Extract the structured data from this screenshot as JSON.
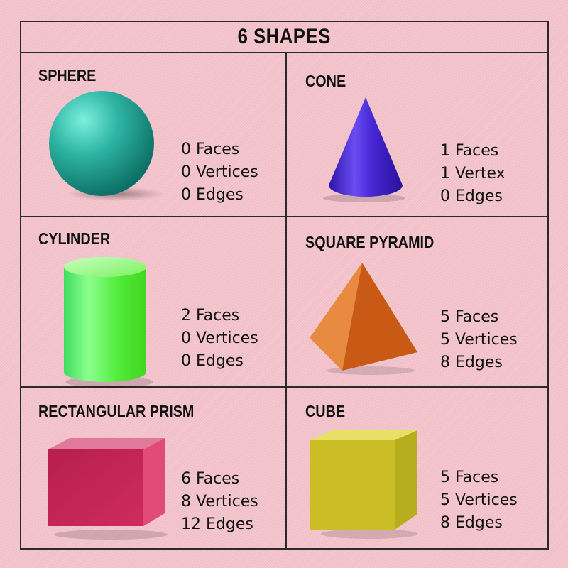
{
  "title": "6 SHAPES",
  "shapes": [
    {
      "name": "SPHERE",
      "faces": "0 Faces",
      "vertices": "0 Vertices",
      "edges": "0 Edges",
      "color": "#2aa596",
      "icon": "sphere-icon"
    },
    {
      "name": "CONE",
      "faces": "1 Faces",
      "vertices": "1 Vertex",
      "edges": "0 Edges",
      "color": "#4a2fcf",
      "icon": "cone-icon"
    },
    {
      "name": "CYLINDER",
      "faces": "2 Faces",
      "vertices": "0 Vertices",
      "edges": "0 Edges",
      "color": "#4df04a",
      "icon": "cylinder-icon"
    },
    {
      "name": "SQUARE PYRAMID",
      "faces": "5 Faces",
      "vertices": "5 Vertices",
      "edges": "8 Edges",
      "color": "#e06d22",
      "icon": "square-pyramid-icon"
    },
    {
      "name": "RECTANGULAR PRISM",
      "faces": "6 Faces",
      "vertices": "8 Vertices",
      "edges": "12 Edges",
      "color": "#c8285a",
      "icon": "rectangular-prism-icon"
    },
    {
      "name": "CUBE",
      "faces": "5 Faces",
      "vertices": "5 Vertices",
      "edges": "8 Edges",
      "color": "#bfb423",
      "icon": "cube-icon"
    }
  ]
}
